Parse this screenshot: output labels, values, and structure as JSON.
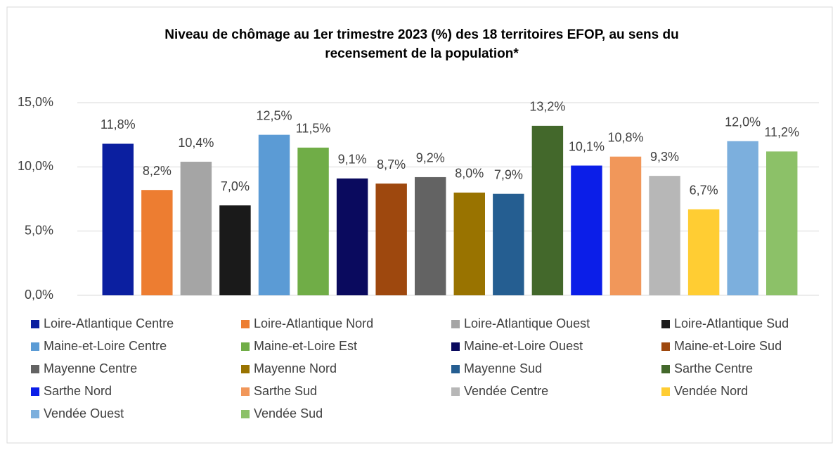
{
  "chart_data": {
    "type": "bar",
    "title": [
      "Niveau de chômage au 1er trimestre 2023 (%) des 18 territoires EFOP, au sens du",
      "recensement de la population*"
    ],
    "ylim": [
      0,
      15
    ],
    "yticks": [
      {
        "value": 0,
        "label": "0,0%"
      },
      {
        "value": 5,
        "label": "5,0%"
      },
      {
        "value": 10,
        "label": "10,0%"
      },
      {
        "value": 15,
        "label": "15,0%"
      }
    ],
    "grid": true,
    "legend": "bottom",
    "series": [
      {
        "name": "Loire-Atlantique Centre",
        "color": "#0b1fa0",
        "values": [
          11.8
        ],
        "value_labels": [
          "11,8%"
        ]
      },
      {
        "name": "Loire-Atlantique Nord",
        "color": "#ed7d31",
        "values": [
          8.2
        ],
        "value_labels": [
          "8,2%"
        ]
      },
      {
        "name": "Loire-Atlantique Ouest",
        "color": "#a5a5a5",
        "values": [
          10.4
        ],
        "value_labels": [
          "10,4%"
        ]
      },
      {
        "name": "Loire-Atlantique Sud",
        "color": "#1a1a1a",
        "values": [
          7.0
        ],
        "value_labels": [
          "7,0%"
        ]
      },
      {
        "name": "Maine-et-Loire Centre",
        "color": "#5b9bd5",
        "values": [
          12.5
        ],
        "value_labels": [
          "12,5%"
        ]
      },
      {
        "name": "Maine-et-Loire Est",
        "color": "#70ad47",
        "values": [
          11.5
        ],
        "value_labels": [
          "11,5%"
        ]
      },
      {
        "name": "Maine-et-Loire Ouest",
        "color": "#0a0a5e",
        "values": [
          9.1
        ],
        "value_labels": [
          "9,1%"
        ]
      },
      {
        "name": "Maine-et-Loire Sud",
        "color": "#9e480e",
        "values": [
          8.7
        ],
        "value_labels": [
          "8,7%"
        ]
      },
      {
        "name": "Mayenne Centre",
        "color": "#636363",
        "values": [
          9.2
        ],
        "value_labels": [
          "9,2%"
        ]
      },
      {
        "name": "Mayenne Nord",
        "color": "#997300",
        "values": [
          8.0
        ],
        "value_labels": [
          "8,0%"
        ]
      },
      {
        "name": "Mayenne Sud",
        "color": "#255e91",
        "values": [
          7.9
        ],
        "value_labels": [
          "7,9%"
        ]
      },
      {
        "name": "Sarthe Centre",
        "color": "#43682b",
        "values": [
          13.2
        ],
        "value_labels": [
          "13,2%"
        ]
      },
      {
        "name": "Sarthe Nord",
        "color": "#0b1ee8",
        "values": [
          10.1
        ],
        "value_labels": [
          "10,1%"
        ]
      },
      {
        "name": "Sarthe Sud",
        "color": "#f1975a",
        "values": [
          10.8
        ],
        "value_labels": [
          "10,8%"
        ]
      },
      {
        "name": "Vendée Centre",
        "color": "#b7b7b7",
        "values": [
          9.3
        ],
        "value_labels": [
          "9,3%"
        ]
      },
      {
        "name": "Vendée Nord",
        "color": "#ffcd33",
        "values": [
          6.7
        ],
        "value_labels": [
          "6,7%"
        ]
      },
      {
        "name": "Vendée Ouest",
        "color": "#7cafdd",
        "values": [
          12.0
        ],
        "value_labels": [
          "12,0%"
        ]
      },
      {
        "name": "Vendée Sud",
        "color": "#8cc168",
        "values": [
          11.2
        ],
        "value_labels": [
          "11,2%"
        ]
      }
    ]
  }
}
